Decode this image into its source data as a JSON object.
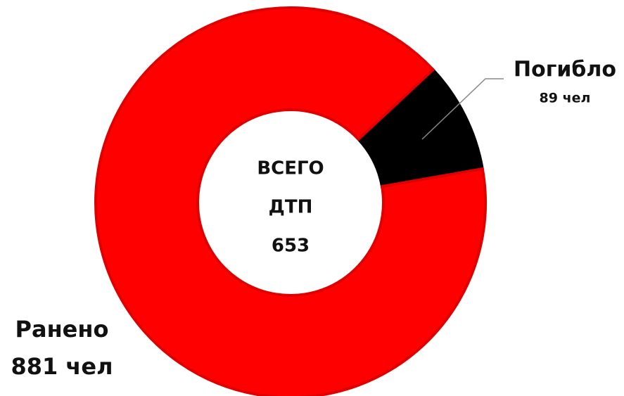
{
  "chart_data": {
    "type": "donut",
    "categories": [
      "Погибло",
      "Ранено"
    ],
    "values": [
      89,
      881
    ],
    "value_labels": [
      "89 чел",
      "881 чел"
    ],
    "colors": [
      "#000000",
      "#ff0000"
    ],
    "center_text": [
      "ВСЕГО",
      "ДТП"
    ],
    "center_value": 653
  }
}
